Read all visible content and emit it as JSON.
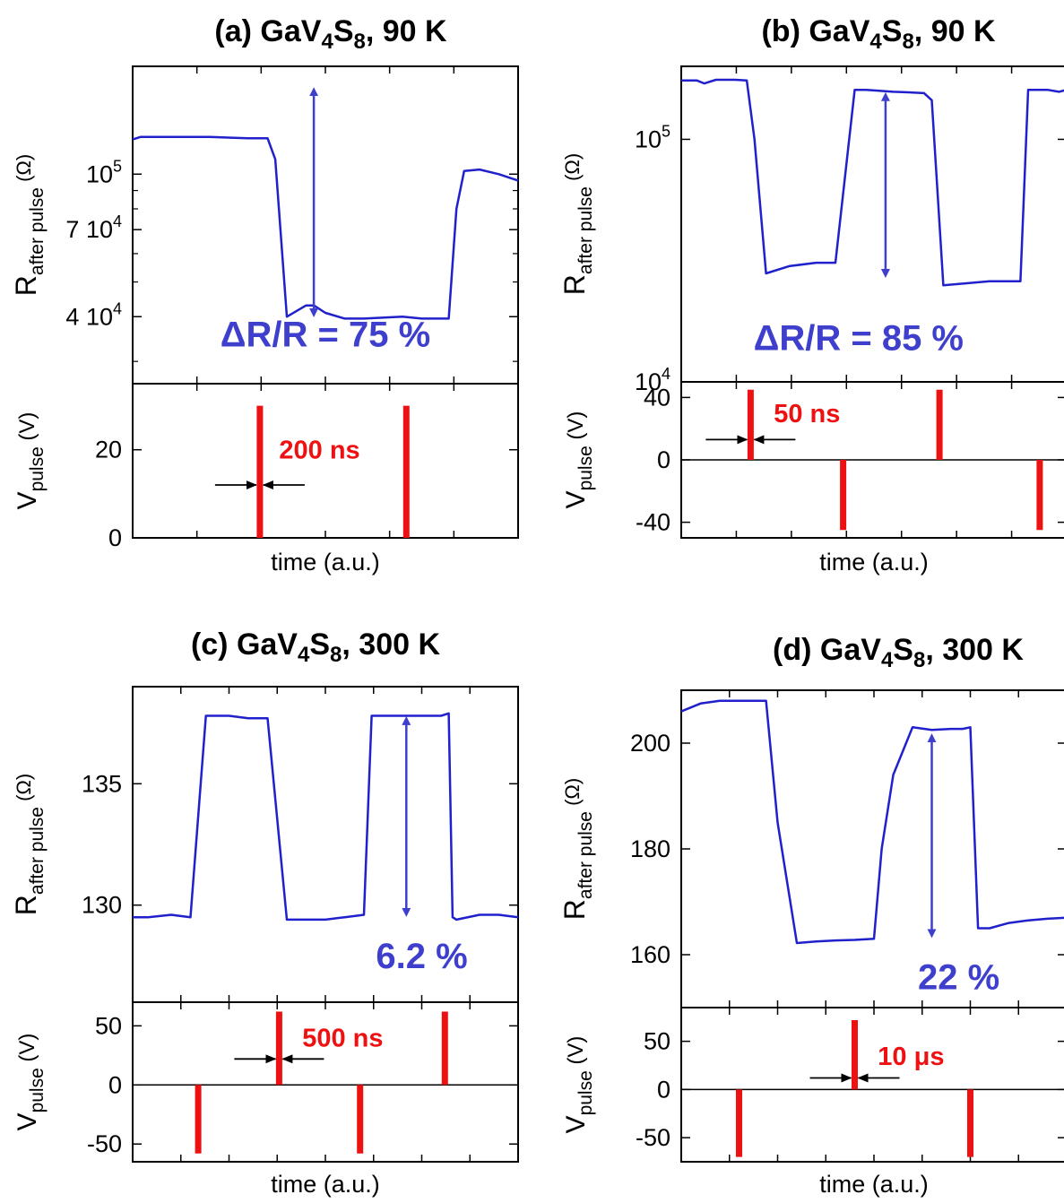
{
  "chart_data": [
    {
      "panel": "(a)",
      "title": "(a) GaV4S8, 90 K",
      "title_parts": {
        "letter": "(a)",
        "base": "GaV",
        "sub1": "4",
        "mid": "S",
        "sub2": "8",
        "rest": ", 90 K"
      },
      "type": "line",
      "ylabel": "R",
      "ylabel_sub": "after pulse",
      "ylabel_unit": "(Ω)",
      "vlabel": "V",
      "vlabel_sub": "pulse",
      "vlabel_unit": "(V)",
      "xlabel": "time (a.u.)",
      "yscale": "log",
      "ylim": [
        26000,
        200000
      ],
      "yticks": [
        {
          "v": 100000,
          "t": "10",
          "sup": "5"
        },
        {
          "v": 70000,
          "t": "7 10",
          "sup": "4"
        },
        {
          "v": 40000,
          "t": "4 10",
          "sup": "4"
        }
      ],
      "ytick_minor": [
        20000,
        30000,
        50000,
        60000,
        80000,
        90000,
        200000
      ],
      "xlim": [
        0,
        100
      ],
      "series": [
        {
          "x": [
            0,
            2,
            10,
            20,
            30,
            35,
            37,
            40,
            45,
            47,
            50,
            55,
            60,
            70,
            75,
            82,
            84,
            86,
            90,
            95,
            100
          ],
          "values": [
            125000,
            127000,
            127000,
            127000,
            126000,
            126000,
            110000,
            40000,
            43000,
            43000,
            41000,
            39500,
            39500,
            40000,
            39500,
            39500,
            80000,
            102000,
            103000,
            100000,
            96000
          ]
        }
      ],
      "arrow": {
        "x": 47,
        "from": 41000,
        "to": 170000
      },
      "delta_label": "ΔR/R = 75 %",
      "delta_pos": {
        "x": 50,
        "y": 33000
      },
      "v_ylim": [
        0,
        35
      ],
      "v_yticks": [
        {
          "v": 0,
          "t": "0"
        },
        {
          "v": 20,
          "t": "20"
        }
      ],
      "v_zero_line": false,
      "pulses": [
        {
          "x": 33,
          "v": 30
        },
        {
          "x": 71,
          "v": 30
        }
      ],
      "pulse_width_label": "200 ns",
      "pulse_width_label_pos": {
        "x": 38,
        "v": 20
      },
      "pulse_marker": {
        "x": 33,
        "v": 12
      },
      "x_ticks": 6
    },
    {
      "panel": "(b)",
      "title": "(b) GaV4S8, 90 K",
      "title_parts": {
        "letter": "(b)",
        "base": "GaV",
        "sub1": "4",
        "mid": "S",
        "sub2": "8",
        "rest": ", 90 K"
      },
      "type": "line",
      "ylabel": "R",
      "ylabel_sub": "after pulse",
      "ylabel_unit": "(Ω)",
      "vlabel": "V",
      "vlabel_sub": "pulse",
      "vlabel_unit": "(V)",
      "xlabel": "time (a.u.)",
      "yscale": "log",
      "ylim": [
        10000,
        200000
      ],
      "yticks": [
        {
          "v": 100000,
          "t": "10",
          "sup": "5"
        },
        {
          "v": 10000,
          "t": "10",
          "sup": "4"
        }
      ],
      "ytick_minor": [],
      "xlim": [
        0,
        100
      ],
      "series": [
        {
          "x": [
            0,
            4,
            6,
            9,
            14,
            17,
            19,
            22,
            28,
            35,
            38,
            40,
            45,
            48,
            55,
            60,
            63,
            65,
            68,
            74,
            80,
            85,
            88,
            90,
            95,
            98,
            100
          ],
          "values": [
            175000,
            175000,
            170000,
            176000,
            176000,
            175000,
            100000,
            28000,
            30000,
            31000,
            31000,
            31000,
            160000,
            160000,
            157000,
            156000,
            155000,
            145000,
            25000,
            25500,
            26000,
            26000,
            26000,
            160000,
            160000,
            157000,
            160000
          ]
        }
      ],
      "arrow": {
        "x": 53,
        "from": 28000,
        "to": 150000
      },
      "delta_label": "ΔR/R = 85 %",
      "delta_pos": {
        "x": 46,
        "y": 13500
      },
      "v_ylim": [
        -50,
        50
      ],
      "v_yticks": [
        {
          "v": 40,
          "t": "40"
        },
        {
          "v": 0,
          "t": "0"
        },
        {
          "v": -40,
          "t": "-40"
        }
      ],
      "v_zero_line": true,
      "pulses": [
        {
          "x": 18,
          "v": 45
        },
        {
          "x": 42,
          "v": -45
        },
        {
          "x": 67,
          "v": 45
        },
        {
          "x": 93,
          "v": -45
        }
      ],
      "pulse_width_label": "50 ns",
      "pulse_width_label_pos": {
        "x": 24,
        "v": 30
      },
      "pulse_marker": {
        "x": 18,
        "v": 13
      },
      "x_ticks": 7
    },
    {
      "panel": "(c)",
      "title": "(c) GaV4S8, 300 K",
      "title_parts": {
        "letter": "(c)",
        "base": "GaV",
        "sub1": "4",
        "mid": "S",
        "sub2": "8",
        "rest": ", 300 K"
      },
      "type": "line",
      "ylabel": "R",
      "ylabel_sub": "after pulse",
      "ylabel_unit": "(Ω)",
      "vlabel": "V",
      "vlabel_sub": "pulse",
      "vlabel_unit": "(V)",
      "xlabel": "time (a.u.)",
      "yscale": "linear",
      "ylim": [
        126,
        139
      ],
      "yticks": [
        {
          "v": 135,
          "t": "135"
        },
        {
          "v": 130,
          "t": "130"
        }
      ],
      "ytick_minor": [],
      "xlim": [
        0,
        100
      ],
      "series": [
        {
          "x": [
            0,
            4,
            10,
            15,
            19,
            25,
            30,
            35,
            40,
            45,
            50,
            55,
            60,
            62,
            64,
            70,
            80,
            82,
            83,
            84,
            90,
            95,
            100
          ],
          "values": [
            129.5,
            129.5,
            129.6,
            129.5,
            137.8,
            137.8,
            137.7,
            137.7,
            129.4,
            129.4,
            129.4,
            129.5,
            129.6,
            137.8,
            137.8,
            137.8,
            137.8,
            137.9,
            129.5,
            129.4,
            129.6,
            129.6,
            129.5
          ]
        }
      ],
      "arrow": {
        "x": 71,
        "from": 129.7,
        "to": 137.6
      },
      "delta_label": "6.2 %",
      "delta_pos": {
        "x": 75,
        "y": 127.4
      },
      "v_ylim": [
        -65,
        70
      ],
      "v_yticks": [
        {
          "v": 50,
          "t": "50"
        },
        {
          "v": 0,
          "t": "0"
        },
        {
          "v": -50,
          "t": "-50"
        }
      ],
      "v_zero_line": true,
      "pulses": [
        {
          "x": 17,
          "v": -58
        },
        {
          "x": 38,
          "v": 62
        },
        {
          "x": 59,
          "v": -58
        },
        {
          "x": 81,
          "v": 62
        }
      ],
      "pulse_width_label": "500 ns",
      "pulse_width_label_pos": {
        "x": 44,
        "v": 40
      },
      "pulse_marker": {
        "x": 38,
        "v": 22
      },
      "x_ticks": 8
    },
    {
      "panel": "(d)",
      "title": "(d) GaV4S8, 300 K",
      "title_parts": {
        "letter": "(d)",
        "base": "GaV",
        "sub1": "4",
        "mid": "S",
        "sub2": "8",
        "rest": ", 300 K"
      },
      "type": "line",
      "ylabel": "R",
      "ylabel_sub": "after pulse",
      "ylabel_unit": "(Ω)",
      "vlabel": "V",
      "vlabel_sub": "pulse",
      "vlabel_unit": "(V)",
      "xlabel": "time (a.u.)",
      "yscale": "linear",
      "ylim": [
        150,
        210
      ],
      "yticks": [
        {
          "v": 200,
          "t": "200"
        },
        {
          "v": 180,
          "t": "180"
        },
        {
          "v": 160,
          "t": "160"
        }
      ],
      "ytick_minor": [],
      "xlim": [
        0,
        100
      ],
      "series": [
        {
          "x": [
            0,
            5,
            10,
            15,
            20,
            22,
            25,
            30,
            35,
            40,
            45,
            50,
            52,
            55,
            60,
            65,
            70,
            73,
            75,
            77,
            80,
            85,
            90,
            95,
            100
          ],
          "values": [
            206,
            207.5,
            208,
            208,
            208,
            208,
            185,
            162.2,
            162.5,
            162.7,
            162.8,
            163,
            180,
            194,
            203,
            202.5,
            202.7,
            202.7,
            203,
            165,
            165,
            166,
            166.5,
            166.8,
            167
          ]
        }
      ],
      "arrow": {
        "x": 65,
        "from": 164,
        "to": 201
      },
      "delta_label": "22 %",
      "delta_pos": {
        "x": 72,
        "y": 153.5
      },
      "v_ylim": [
        -75,
        85
      ],
      "v_yticks": [
        {
          "v": 50,
          "t": "50"
        },
        {
          "v": 0,
          "t": "0"
        },
        {
          "v": -50,
          "t": "-50"
        }
      ],
      "v_zero_line": true,
      "pulses": [
        {
          "x": 15,
          "v": -70
        },
        {
          "x": 45,
          "v": 72
        },
        {
          "x": 75,
          "v": -70
        }
      ],
      "pulse_width_label": "10 μs",
      "pulse_width_label_pos": {
        "x": 51,
        "v": 35
      },
      "pulse_marker": {
        "x": 45,
        "v": 12
      },
      "x_ticks": 8
    }
  ],
  "colors": {
    "trace": "#2020cc",
    "arrow": "#3f3fce",
    "pulse": "#ee1111",
    "axis": "#000000"
  }
}
